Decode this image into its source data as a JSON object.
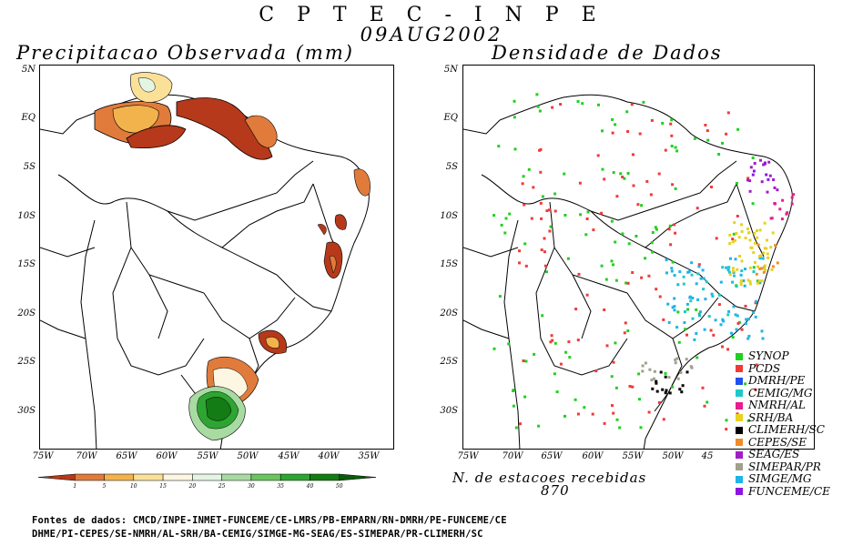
{
  "header": {
    "organization": "C P T E C - I N P E",
    "date": "09AUG2002"
  },
  "left_panel": {
    "title": "Precipitacao Observada (mm)",
    "colorbar": {
      "levels": [
        "1",
        "5",
        "10",
        "15",
        "20",
        "25",
        "30",
        "35",
        "40",
        "50"
      ],
      "colors": [
        "#b5391a",
        "#e07b3c",
        "#f3b34c",
        "#fbe098",
        "#fdf6e2",
        "#e4f5e4",
        "#a8dba2",
        "#6cc460",
        "#2ea532",
        "#147c14",
        "#0a5c0a"
      ]
    }
  },
  "right_panel": {
    "title": "Densidade de Dados",
    "stations_label": "N. de estacoes recebidas",
    "stations_count": "870"
  },
  "axes": {
    "lat_labels": [
      "5N",
      "EQ",
      "5S",
      "10S",
      "15S",
      "20S",
      "25S",
      "30S"
    ],
    "lon_labels_left": [
      "75W",
      "70W",
      "65W",
      "60W",
      "55W",
      "50W",
      "45W",
      "40W",
      "35W"
    ],
    "lon_labels_right": [
      "75W",
      "70W",
      "65W",
      "60W",
      "55W",
      "50W",
      "45"
    ]
  },
  "legend": [
    {
      "label": "SYNOP",
      "color": "#1fd11f"
    },
    {
      "label": "PCDS",
      "color": "#f03a3a"
    },
    {
      "label": "DMRH/PE",
      "color": "#1f50f0"
    },
    {
      "label": "CEMIG/MG",
      "color": "#1fc8c8"
    },
    {
      "label": "NMRH/AL",
      "color": "#e81e8c"
    },
    {
      "label": "SRH/BA",
      "color": "#e8d21e"
    },
    {
      "label": "CLIMERH/SC",
      "color": "#000000"
    },
    {
      "label": "CEPES/SE",
      "color": "#f08c28"
    },
    {
      "label": "SEAG/ES",
      "color": "#a01ec8"
    },
    {
      "label": "SIMEPAR/PR",
      "color": "#a0a08c"
    },
    {
      "label": "SIMGE/MG",
      "color": "#1eb4e8"
    },
    {
      "label": "FUNCEME/CE",
      "color": "#8c14e0"
    }
  ],
  "footer": {
    "line1": "Fontes de dados: CMCD/INPE-INMET-FUNCEME/CE-LMRS/PB-EMPARN/RN-DMRH/PE-FUNCEME/CE",
    "line2": "DHME/PI-CEPES/SE-NMRH/AL-SRH/BA-CEMIG/SIMGE-MG-SEAG/ES-SIMEPAR/PR-CLIMERH/SC"
  }
}
